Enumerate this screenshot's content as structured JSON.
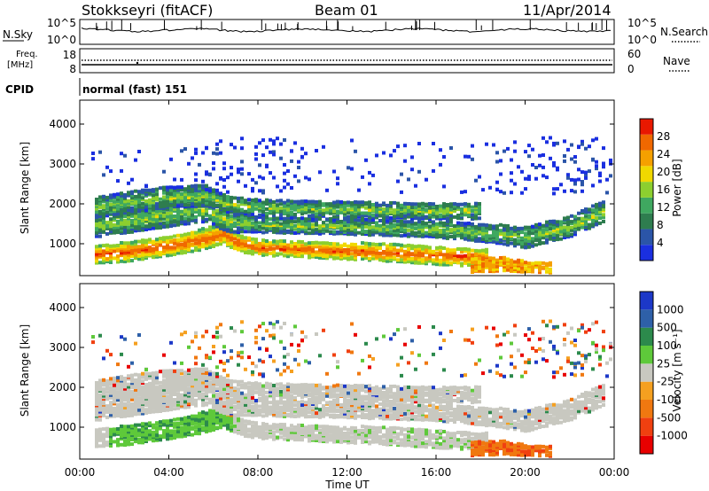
{
  "header": {
    "title": "Stokkseyri (fitACF)",
    "beam": "Beam 01",
    "date": "11/Apr/2014"
  },
  "noise_panel": {
    "left_label": "N.Sky",
    "left_ticks": [
      "10^5",
      "10^0"
    ],
    "right_ticks": [
      "10^5",
      "10^0"
    ],
    "right_label": "N.Search"
  },
  "freq_panel": {
    "label_top": "Freq.",
    "label_unit": "[MHz]",
    "left_ticks": [
      "18",
      "8"
    ],
    "right_ticks": [
      "60",
      "0"
    ],
    "right_label": "Nave"
  },
  "cpid_panel": {
    "label": "CPID",
    "mode_text": "normal (fast) 151"
  },
  "colors": {
    "power_scale": [
      "#1a2fe0",
      "#2b55a8",
      "#2e7d4f",
      "#3fa860",
      "#8ccf2f",
      "#f0d800",
      "#f5a000",
      "#f06800",
      "#e81800"
    ],
    "velocity_scale": [
      "#1c38c8",
      "#2e60a8",
      "#2c8a4c",
      "#5ec93a",
      "#c8c8c0",
      "#f5a020",
      "#f07810",
      "#f04010",
      "#e80000"
    ]
  },
  "chart_data": [
    {
      "type": "heatmap",
      "title": "Power",
      "xlabel": "",
      "ylabel": "Slant Range [km]",
      "x_ticks": [
        "00:00",
        "04:00",
        "08:00",
        "12:00",
        "16:00",
        "20:00",
        "00:00"
      ],
      "xlim": [
        0,
        24
      ],
      "y_ticks": [
        "1000",
        "2000",
        "3000",
        "4000"
      ],
      "ylim": [
        200,
        4600
      ],
      "colorbar": {
        "label": "Power [dB]",
        "ticks": [
          "4",
          "8",
          "12",
          "16",
          "20",
          "24",
          "28"
        ],
        "range": [
          0,
          32
        ]
      },
      "echo_bands": [
        {
          "name": "lower",
          "points": [
            [
              0.6,
              780,
              210
            ],
            [
              2,
              840,
              230
            ],
            [
              4,
              1000,
              240
            ],
            [
              5.6,
              1180,
              250
            ],
            [
              6.4,
              1300,
              250
            ],
            [
              7,
              1080,
              220
            ],
            [
              8,
              950,
              180
            ],
            [
              10,
              910,
              190
            ],
            [
              12,
              870,
              200
            ],
            [
              14,
              820,
              210
            ],
            [
              16,
              760,
              220
            ],
            [
              17.5,
              720,
              220
            ],
            [
              18.2,
              700,
              180
            ]
          ]
        },
        {
          "name": "middle",
          "points": [
            [
              0.6,
              1500,
              280
            ],
            [
              2,
              1620,
              300
            ],
            [
              4,
              1800,
              300
            ],
            [
              5.6,
              1920,
              300
            ],
            [
              6.6,
              1620,
              280
            ],
            [
              8,
              1520,
              180
            ],
            [
              12,
              1470,
              180
            ],
            [
              16,
              1420,
              200
            ],
            [
              18.5,
              1300,
              220
            ],
            [
              20,
              1200,
              250
            ],
            [
              22,
              1500,
              260
            ],
            [
              23.6,
              1900,
              260
            ]
          ]
        },
        {
          "name": "upper",
          "points": [
            [
              0.6,
              1950,
              250
            ],
            [
              2,
              2080,
              250
            ],
            [
              4,
              2220,
              250
            ],
            [
              5.6,
              2250,
              250
            ],
            [
              6.6,
              2050,
              200
            ],
            [
              8,
              1950,
              180
            ],
            [
              12,
              1900,
              180
            ],
            [
              16,
              1870,
              200
            ],
            [
              18,
              1880,
              200
            ]
          ]
        },
        {
          "name": "evening",
          "points": [
            [
              17.5,
              520,
              180
            ],
            [
              19,
              540,
              160
            ],
            [
              20,
              470,
              130
            ],
            [
              21.2,
              440,
              120
            ]
          ]
        }
      ]
    },
    {
      "type": "heatmap",
      "title": "Velocity",
      "xlabel": "Time UT",
      "ylabel": "Slant Range [km]",
      "x_ticks": [
        "00:00",
        "04:00",
        "08:00",
        "12:00",
        "16:00",
        "20:00",
        "00:00"
      ],
      "xlim": [
        0,
        24
      ],
      "y_ticks": [
        "1000",
        "2000",
        "3000",
        "4000"
      ],
      "ylim": [
        200,
        4600
      ],
      "colorbar": {
        "label": "Velocity [m s⁻¹]",
        "ticks": [
          "1000",
          "500",
          "100",
          "25",
          "-25",
          "-100",
          "-500",
          "-1000"
        ]
      }
    }
  ]
}
